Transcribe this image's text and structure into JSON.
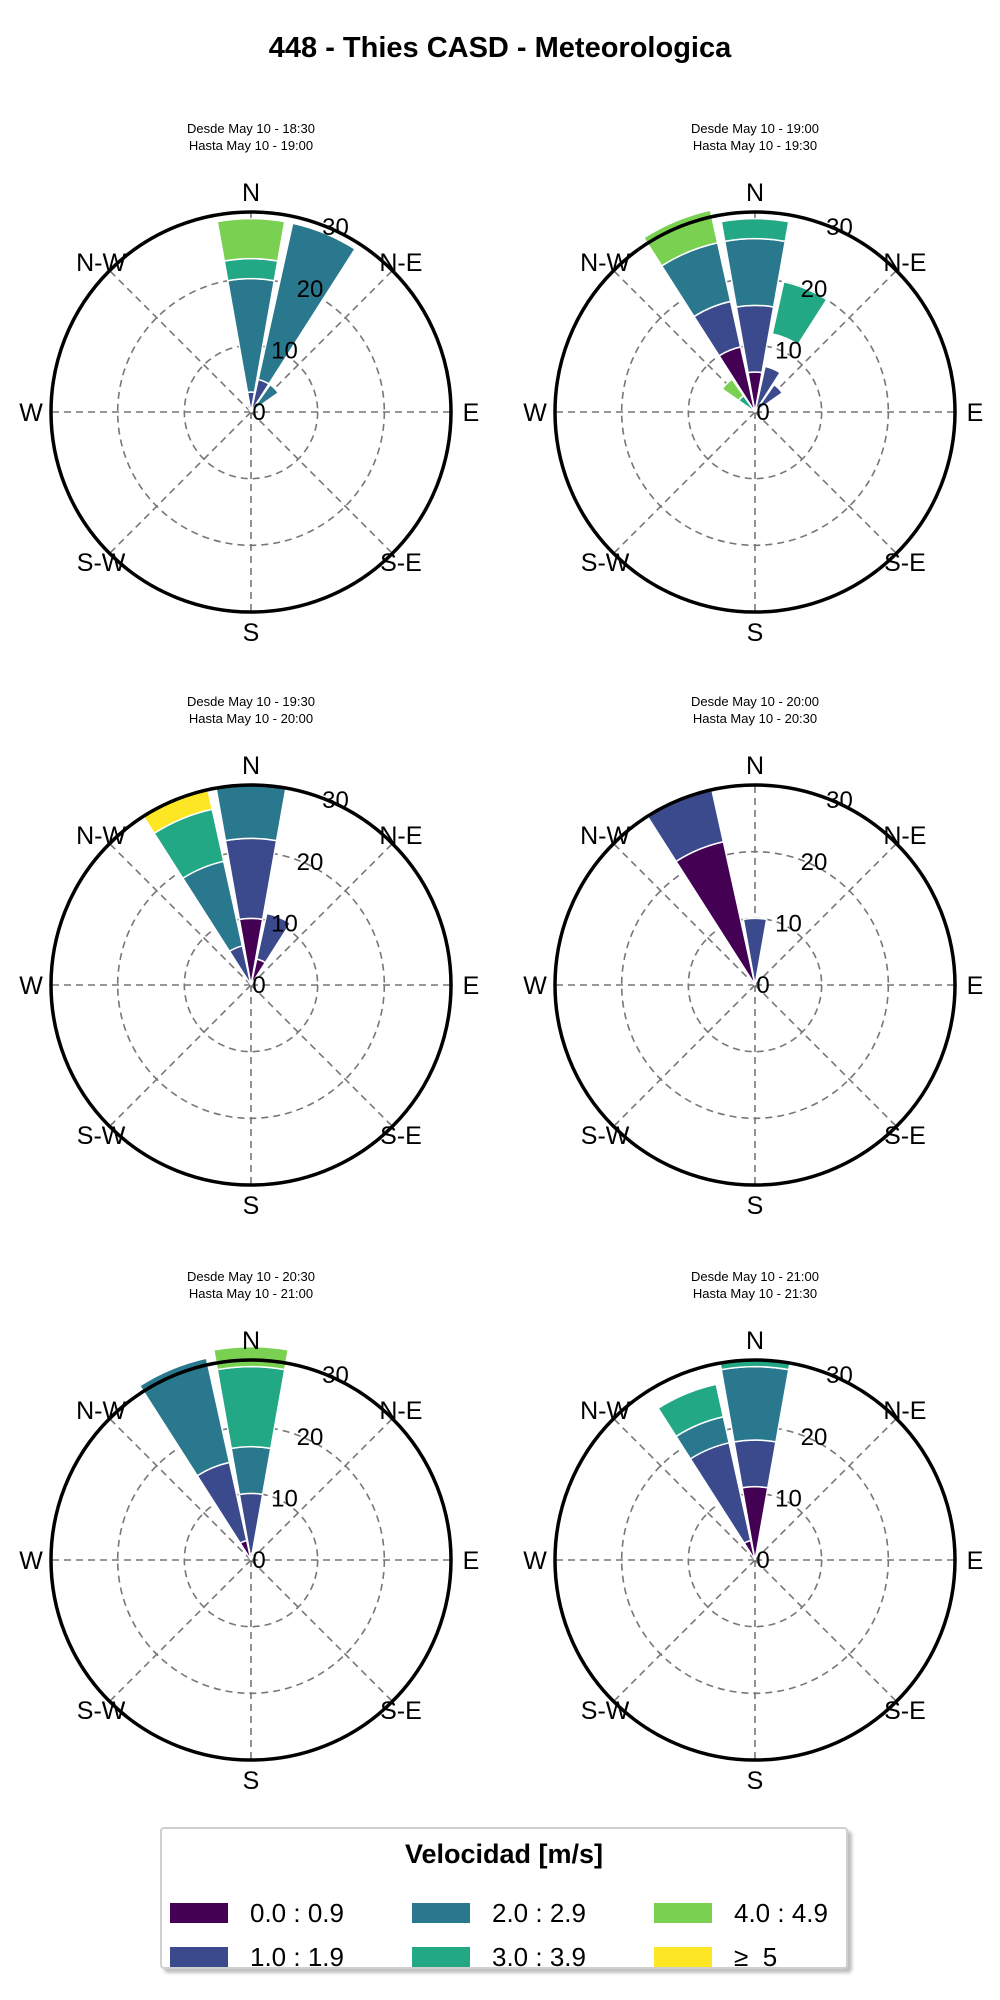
{
  "figure": {
    "title": "448 - Thies CASD - Meteorologica"
  },
  "legend": {
    "title": "Velocidad [m/s]",
    "items": [
      {
        "label": "0.0 : 0.9",
        "color": "#440154"
      },
      {
        "label": "1.0 : 1.9",
        "color": "#3b4a8c"
      },
      {
        "label": "2.0 : 2.9",
        "color": "#2a788e"
      },
      {
        "label": "3.0 : 3.9",
        "color": "#22a884"
      },
      {
        "label": "4.0 : 4.9",
        "color": "#7ad151"
      },
      {
        "label": "≥  5",
        "color": "#fde725"
      }
    ]
  },
  "chart_data": [
    {
      "type": "windrose",
      "title": "Desde May 10 - 18:30\nHasta May 10 - 19:00",
      "direction_labels": [
        "N",
        "N-E",
        "E",
        "S-E",
        "S",
        "S-W",
        "W",
        "N-W"
      ],
      "radial_ticks": [
        0,
        10,
        20,
        30
      ],
      "rlim": [
        0,
        30
      ],
      "bins": [
        "0.0 : 0.9",
        "1.0 : 1.9",
        "2.0 : 2.9",
        "3.0 : 3.9",
        "4.0 : 4.9",
        "≥  5"
      ],
      "sectors": [
        {
          "angle": 0,
          "values": [
            0,
            3,
            17,
            3,
            6,
            0
          ]
        },
        {
          "angle": 22.5,
          "values": [
            0,
            5,
            0,
            0,
            0,
            0
          ]
        },
        {
          "angle": 45,
          "values": [
            0,
            0,
            5,
            0,
            0,
            0
          ]
        },
        {
          "angle": 337.5,
          "values": [
            1,
            0,
            0,
            0,
            0,
            0
          ]
        }
      ],
      "extra_sectors": [
        {
          "angle": 22.5,
          "base": 5,
          "values": [
            0,
            0,
            24,
            0,
            0,
            0
          ]
        }
      ]
    },
    {
      "type": "windrose",
      "title": "Desde May 10 - 19:00\nHasta May 10 - 19:30",
      "direction_labels": [
        "N",
        "N-E",
        "E",
        "S-E",
        "S",
        "S-W",
        "W",
        "N-W"
      ],
      "radial_ticks": [
        0,
        10,
        20,
        30
      ],
      "rlim": [
        0,
        30
      ],
      "bins": [
        "0.0 : 0.9",
        "1.0 : 1.9",
        "2.0 : 2.9",
        "3.0 : 3.9",
        "4.0 : 4.9",
        "≥  5"
      ],
      "sectors": [
        {
          "angle": 0,
          "values": [
            6,
            10,
            10,
            3,
            0,
            0
          ]
        },
        {
          "angle": 22.5,
          "values": [
            0,
            7,
            0,
            0,
            0,
            0
          ]
        },
        {
          "angle": 45,
          "values": [
            0,
            5,
            0,
            0,
            0,
            0
          ]
        },
        {
          "angle": 337.5,
          "values": [
            10,
            7,
            9,
            0,
            0,
            0
          ]
        },
        {
          "angle": 315,
          "values": [
            0,
            0,
            0,
            3,
            3,
            0
          ]
        }
      ],
      "extra_sectors": [
        {
          "angle": 22.5,
          "base": 12,
          "values": [
            0,
            0,
            0,
            8,
            0,
            0
          ]
        },
        {
          "angle": 337.5,
          "base": 26,
          "values": [
            0,
            0,
            0,
            0,
            5,
            0
          ]
        }
      ]
    },
    {
      "type": "windrose",
      "title": "Desde May 10 - 19:30\nHasta May 10 - 20:00",
      "direction_labels": [
        "N",
        "N-E",
        "E",
        "S-E",
        "S",
        "S-W",
        "W",
        "N-W"
      ],
      "radial_ticks": [
        0,
        10,
        20,
        30
      ],
      "rlim": [
        0,
        30
      ],
      "bins": [
        "0.0 : 0.9",
        "1.0 : 1.9",
        "2.0 : 2.9",
        "3.0 : 3.9",
        "4.0 : 4.9",
        "≥  5"
      ],
      "sectors": [
        {
          "angle": 0,
          "values": [
            10,
            12,
            8,
            0,
            0,
            0
          ]
        },
        {
          "angle": 22.5,
          "values": [
            4,
            7,
            0,
            0,
            0,
            0
          ]
        },
        {
          "angle": 337.5,
          "values": [
            0,
            6,
            13,
            8,
            0,
            3
          ]
        }
      ]
    },
    {
      "type": "windrose",
      "title": "Desde May 10 - 20:00\nHasta May 10 - 20:30",
      "direction_labels": [
        "N",
        "N-E",
        "E",
        "S-E",
        "S",
        "S-W",
        "W",
        "N-W"
      ],
      "radial_ticks": [
        0,
        10,
        20,
        30
      ],
      "rlim": [
        0,
        30
      ],
      "bins": [
        "0.0 : 0.9",
        "1.0 : 1.9",
        "2.0 : 2.9",
        "3.0 : 3.9",
        "4.0 : 4.9",
        "≥  5"
      ],
      "sectors": [
        {
          "angle": 0,
          "values": [
            0,
            10,
            0,
            0,
            0,
            0
          ]
        },
        {
          "angle": 337.5,
          "values": [
            22,
            8,
            0,
            0,
            0,
            0
          ]
        },
        {
          "angle": 315,
          "values": [
            0,
            0,
            1,
            0,
            0,
            0
          ]
        }
      ]
    },
    {
      "type": "windrose",
      "title": "Desde May 10 - 20:30\nHasta May 10 - 21:00",
      "direction_labels": [
        "N",
        "N-E",
        "E",
        "S-E",
        "S",
        "S-W",
        "W",
        "N-W"
      ],
      "radial_ticks": [
        0,
        10,
        20,
        30
      ],
      "rlim": [
        0,
        30
      ],
      "bins": [
        "0.0 : 0.9",
        "1.0 : 1.9",
        "2.0 : 2.9",
        "3.0 : 3.9",
        "4.0 : 4.9",
        "≥  5"
      ],
      "sectors": [
        {
          "angle": 0,
          "values": [
            1,
            9,
            7,
            12,
            3,
            0
          ]
        },
        {
          "angle": 22.5,
          "values": [
            0,
            0,
            0,
            1,
            0,
            0
          ]
        },
        {
          "angle": 337.5,
          "values": [
            3,
            12,
            16,
            0,
            0,
            0
          ]
        }
      ]
    },
    {
      "type": "windrose",
      "title": "Desde May 10 - 21:00\nHasta May 10 - 21:30",
      "direction_labels": [
        "N",
        "N-E",
        "E",
        "S-E",
        "S",
        "S-W",
        "W",
        "N-W"
      ],
      "radial_ticks": [
        0,
        10,
        20,
        30
      ],
      "rlim": [
        0,
        30
      ],
      "bins": [
        "0.0 : 0.9",
        "1.0 : 1.9",
        "2.0 : 2.9",
        "3.0 : 3.9",
        "4.0 : 4.9",
        "≥  5"
      ],
      "sectors": [
        {
          "angle": 0,
          "values": [
            11,
            7,
            11,
            1,
            0,
            0
          ]
        },
        {
          "angle": 337.5,
          "values": [
            3,
            15,
            4,
            5,
            0,
            0
          ]
        }
      ]
    }
  ]
}
